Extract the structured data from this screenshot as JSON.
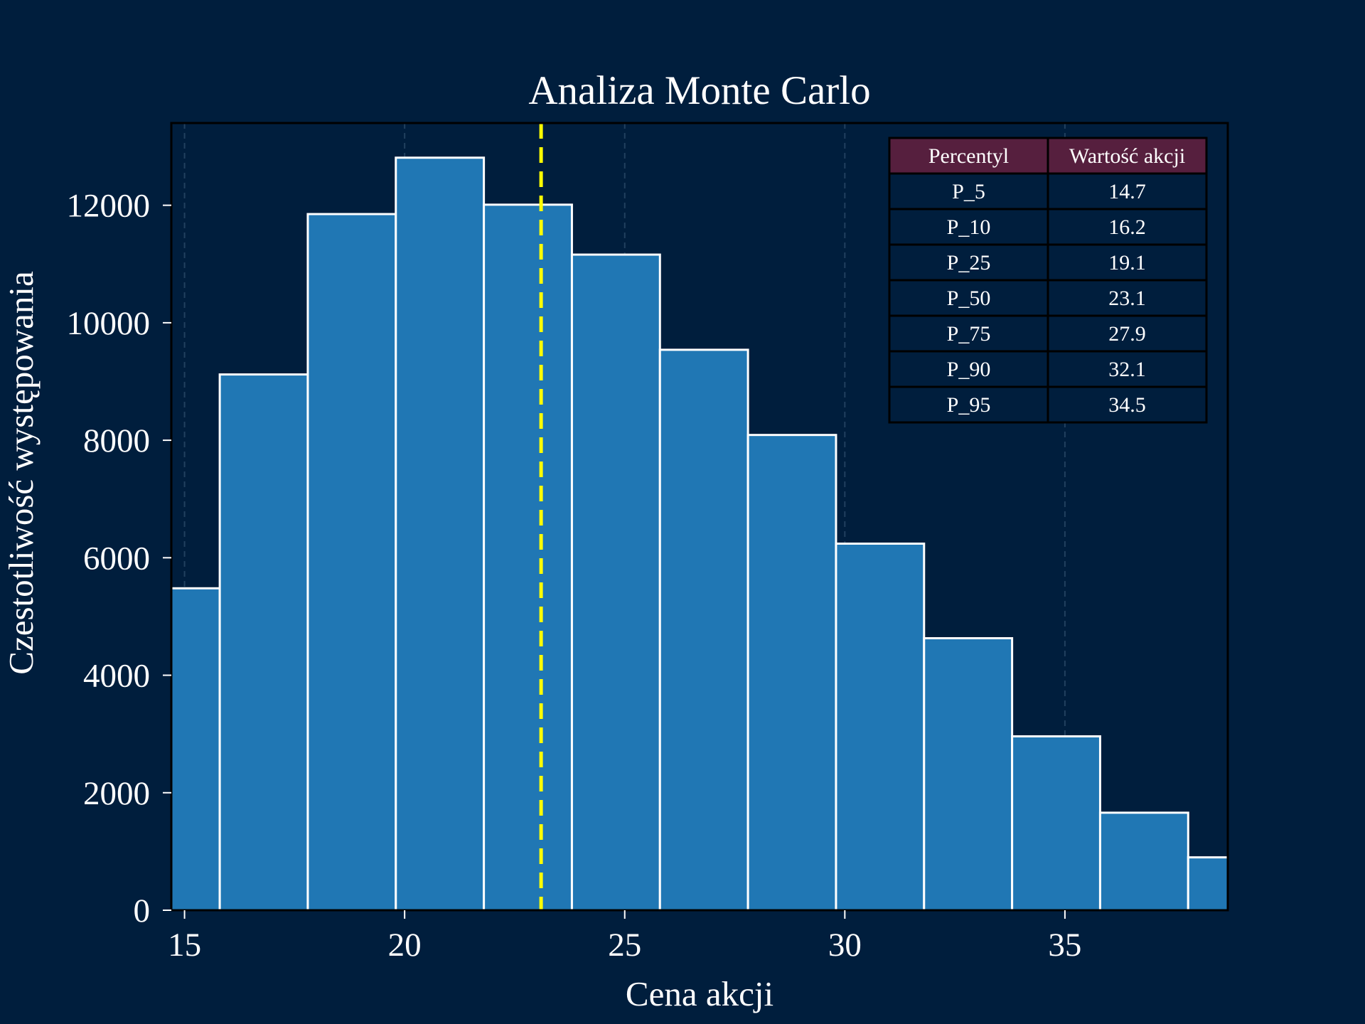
{
  "chart_data": {
    "type": "bar",
    "title": "Analiza Monte Carlo",
    "xlabel": "Cena akcji",
    "ylabel": "Czestotliwość występowania",
    "xlim": [
      14.7,
      38.7
    ],
    "ylim": [
      0,
      13400
    ],
    "x_ticks": [
      15,
      20,
      25,
      30,
      35
    ],
    "y_ticks": [
      0,
      2000,
      4000,
      6000,
      8000,
      10000,
      12000
    ],
    "grid": "vertical dashed",
    "bin_width": 2.0,
    "bins": [
      {
        "start": 13.8,
        "end": 15.8,
        "count": 5480
      },
      {
        "start": 15.8,
        "end": 17.8,
        "count": 9120
      },
      {
        "start": 17.8,
        "end": 19.8,
        "count": 11850
      },
      {
        "start": 19.8,
        "end": 21.8,
        "count": 12810
      },
      {
        "start": 21.8,
        "end": 23.8,
        "count": 12010
      },
      {
        "start": 23.8,
        "end": 25.8,
        "count": 11160
      },
      {
        "start": 25.8,
        "end": 27.8,
        "count": 9540
      },
      {
        "start": 27.8,
        "end": 29.8,
        "count": 8090
      },
      {
        "start": 29.8,
        "end": 31.8,
        "count": 6240
      },
      {
        "start": 31.8,
        "end": 33.8,
        "count": 4630
      },
      {
        "start": 33.8,
        "end": 35.8,
        "count": 2960
      },
      {
        "start": 35.8,
        "end": 37.8,
        "count": 1660
      },
      {
        "start": 37.8,
        "end": 39.8,
        "count": 900
      }
    ],
    "median_line": {
      "x": 23.1,
      "style": "dashed"
    },
    "percentile_table": {
      "headers": [
        "Percentyl",
        "Wartość akcji"
      ],
      "rows": [
        [
          "P_5",
          "14.7"
        ],
        [
          "P_10",
          "16.2"
        ],
        [
          "P_25",
          "19.1"
        ],
        [
          "P_50",
          "23.1"
        ],
        [
          "P_75",
          "27.9"
        ],
        [
          "P_90",
          "32.1"
        ],
        [
          "P_95",
          "34.5"
        ]
      ],
      "placement": "top-right"
    },
    "colors": {
      "background": "#001e3d",
      "bar_fill": "#2077b4",
      "bar_edge": "#ffffff",
      "median_line": "#ffff00",
      "table_header": "#561f3e",
      "table_body": "#001e3d",
      "table_border": "#000000",
      "grid": "#21405e",
      "text": "#ffffff"
    }
  }
}
